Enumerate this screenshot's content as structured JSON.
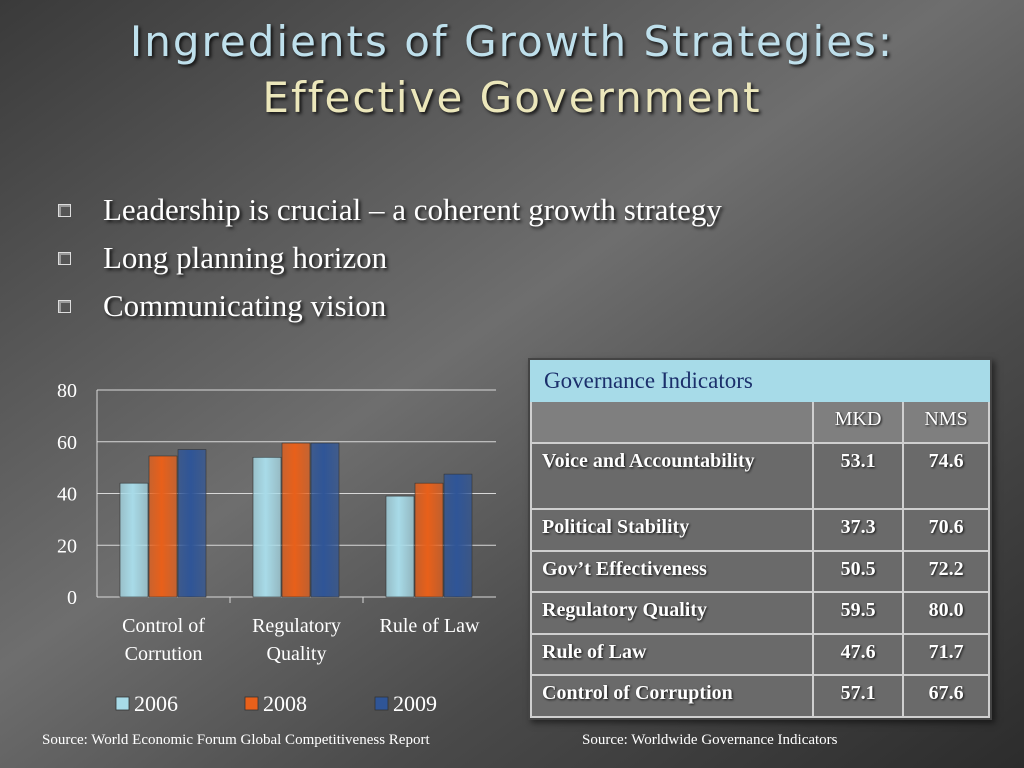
{
  "title": {
    "line1": "Ingredients of Growth Strategies:",
    "line2": "Effective Government"
  },
  "bullets": [
    "Leadership is crucial – a coherent growth strategy",
    "Long planning horizon",
    "Communicating vision"
  ],
  "chart_data": {
    "type": "bar",
    "categories": [
      [
        "Control of",
        "Corrution"
      ],
      [
        "Regulatory",
        "Quality"
      ],
      [
        "Rule of Law"
      ]
    ],
    "series": [
      {
        "name": "2006",
        "values": [
          44,
          54,
          39
        ],
        "color": "#a8dbe8"
      },
      {
        "name": "2008",
        "values": [
          54.5,
          59.5,
          44
        ],
        "color": "#e8601a"
      },
      {
        "name": "2009",
        "values": [
          57,
          59.5,
          47.5
        ],
        "color": "#2f5597"
      }
    ],
    "y_ticks": [
      0,
      20,
      40,
      60,
      80
    ],
    "ylim": [
      0,
      80
    ],
    "grid": true,
    "legend": "bottom"
  },
  "table": {
    "title": "Governance Indicators",
    "columns": [
      "MKD",
      "NMS"
    ],
    "rows": [
      {
        "name": "Voice and Accountability",
        "mkd": "53.1",
        "nms": "74.6"
      },
      {
        "name": "Political Stability",
        "mkd": "37.3",
        "nms": "70.6"
      },
      {
        "name": "Gov’t Effectiveness",
        "mkd": "50.5",
        "nms": "72.2"
      },
      {
        "name": "Regulatory Quality",
        "mkd": "59.5",
        "nms": "80.0"
      },
      {
        "name": "Rule of Law",
        "mkd": "47.6",
        "nms": "71.7"
      },
      {
        "name": "Control of Corruption",
        "mkd": "57.1",
        "nms": "67.6"
      }
    ]
  },
  "sources": {
    "left": "Source: World Economic Forum Global Competitiveness Report",
    "right": "Source: Worldwide Governance Indicators"
  }
}
